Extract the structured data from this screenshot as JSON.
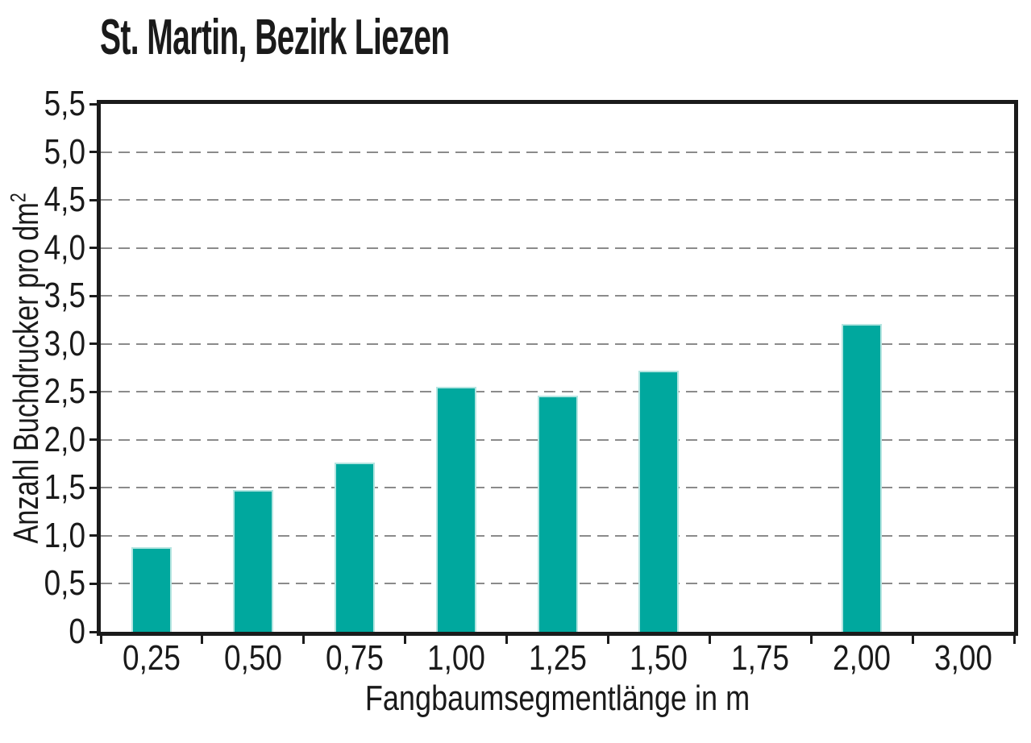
{
  "chart_data": {
    "type": "bar",
    "title": "St. Martin, Bezirk Liezen",
    "categories": [
      "0,25",
      "0,50",
      "0,75",
      "1,00",
      "1,25",
      "1,50",
      "1,75",
      "2,00",
      "3,00"
    ],
    "values": [
      0.88,
      1.48,
      1.76,
      2.55,
      2.46,
      2.72,
      0,
      3.21,
      0
    ],
    "xlabel": "Fangbaumsegmentlänge in m",
    "ylabel_base": "Anzahl Buchdrucker pro dm",
    "ylabel_sup": "2",
    "ylim": [
      0,
      5.5
    ],
    "ytick_values": [
      0,
      0.5,
      1.0,
      1.5,
      2.0,
      2.5,
      3.0,
      3.5,
      4.0,
      4.5,
      5.0,
      5.5
    ],
    "ytick_labels": [
      "0",
      "0,5",
      "1,0",
      "1,5",
      "2,0",
      "2,5",
      "3,0",
      "3,5",
      "4,0",
      "4,5",
      "5,0",
      "5,5"
    ],
    "grid": "horizontal dashed gridlines at each 0.5 step",
    "legend": "none",
    "bar_width_fraction": 0.4,
    "colors": {
      "bar_fill": "#00A89E",
      "bar_edge": "#B5E5E1",
      "grid_line": "#8B8B8B",
      "axis_frame": "#1B1B1B",
      "text": "#1A1A1A",
      "background": "#FFFFFF"
    }
  }
}
